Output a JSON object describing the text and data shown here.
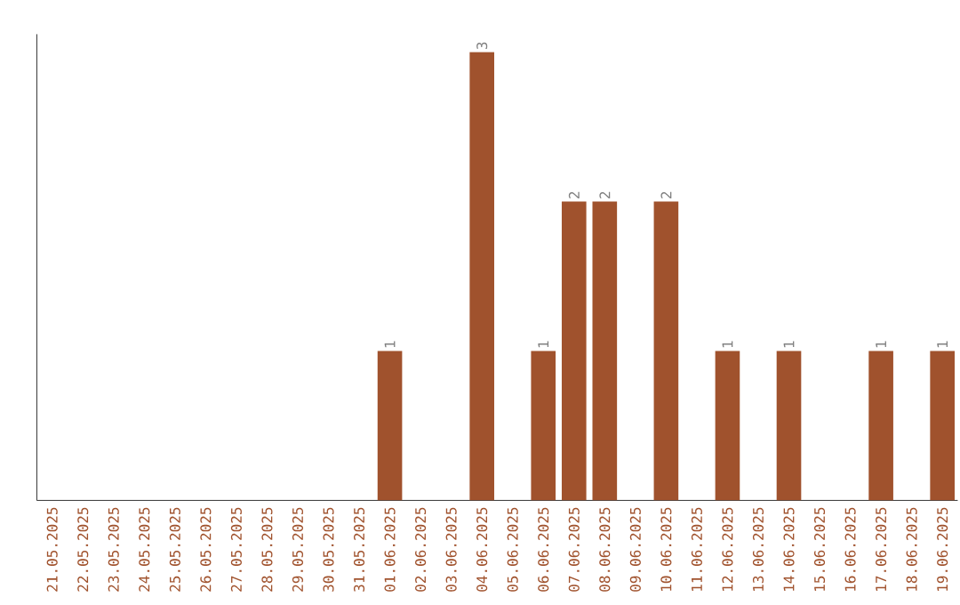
{
  "chart_data": {
    "type": "bar",
    "categories": [
      "21.05.2025",
      "22.05.2025",
      "23.05.2025",
      "24.05.2025",
      "25.05.2025",
      "26.05.2025",
      "27.05.2025",
      "28.05.2025",
      "29.05.2025",
      "30.05.2025",
      "31.05.2025",
      "01.06.2025",
      "02.06.2025",
      "03.06.2025",
      "04.06.2025",
      "05.06.2025",
      "06.06.2025",
      "07.06.2025",
      "08.06.2025",
      "09.06.2025",
      "10.06.2025",
      "11.06.2025",
      "12.06.2025",
      "13.06.2025",
      "14.06.2025",
      "15.06.2025",
      "16.06.2025",
      "17.06.2025",
      "18.06.2025",
      "19.06.2025"
    ],
    "values": [
      0,
      0,
      0,
      0,
      0,
      0,
      0,
      0,
      0,
      0,
      0,
      1,
      0,
      0,
      3,
      0,
      1,
      2,
      2,
      0,
      2,
      0,
      1,
      0,
      1,
      0,
      0,
      1,
      0,
      1
    ],
    "value_labels": [
      null,
      null,
      null,
      null,
      null,
      null,
      null,
      null,
      null,
      null,
      null,
      "1",
      null,
      null,
      "3",
      null,
      "1",
      "2",
      "2",
      null,
      "2",
      null,
      "1",
      null,
      "1",
      null,
      null,
      "1",
      null,
      "1"
    ],
    "color": "#a0522d",
    "ylim": [
      0,
      3
    ],
    "tick_labels": "x",
    "grid": false
  }
}
